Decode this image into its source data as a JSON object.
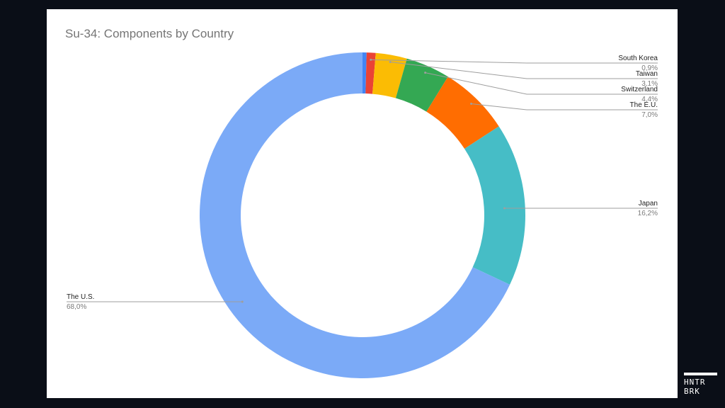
{
  "chart_data": {
    "type": "pie",
    "style": "donut",
    "title": "Su-34: Components by Country",
    "slices": [
      {
        "label": "",
        "value": 0.4,
        "display": "",
        "color": "#4285f4"
      },
      {
        "label": "South Korea",
        "value": 0.9,
        "display": "0,9%",
        "color": "#ea4335"
      },
      {
        "label": "Taiwan",
        "value": 3.1,
        "display": "3,1%",
        "color": "#fbbc04"
      },
      {
        "label": "Switzerland",
        "value": 4.4,
        "display": "4,4%",
        "color": "#34a853"
      },
      {
        "label": "The E.U.",
        "value": 7.0,
        "display": "7,0%",
        "color": "#ff6d01"
      },
      {
        "label": "Japan",
        "value": 16.2,
        "display": "16,2%",
        "color": "#46bdc6"
      },
      {
        "label": "The U.S.",
        "value": 68.0,
        "display": "68,0%",
        "color": "#7baaf7"
      }
    ],
    "legend": "none",
    "labels": "outside with leader lines"
  },
  "logo": {
    "line1": "HNTR",
    "line2": "BRK"
  }
}
